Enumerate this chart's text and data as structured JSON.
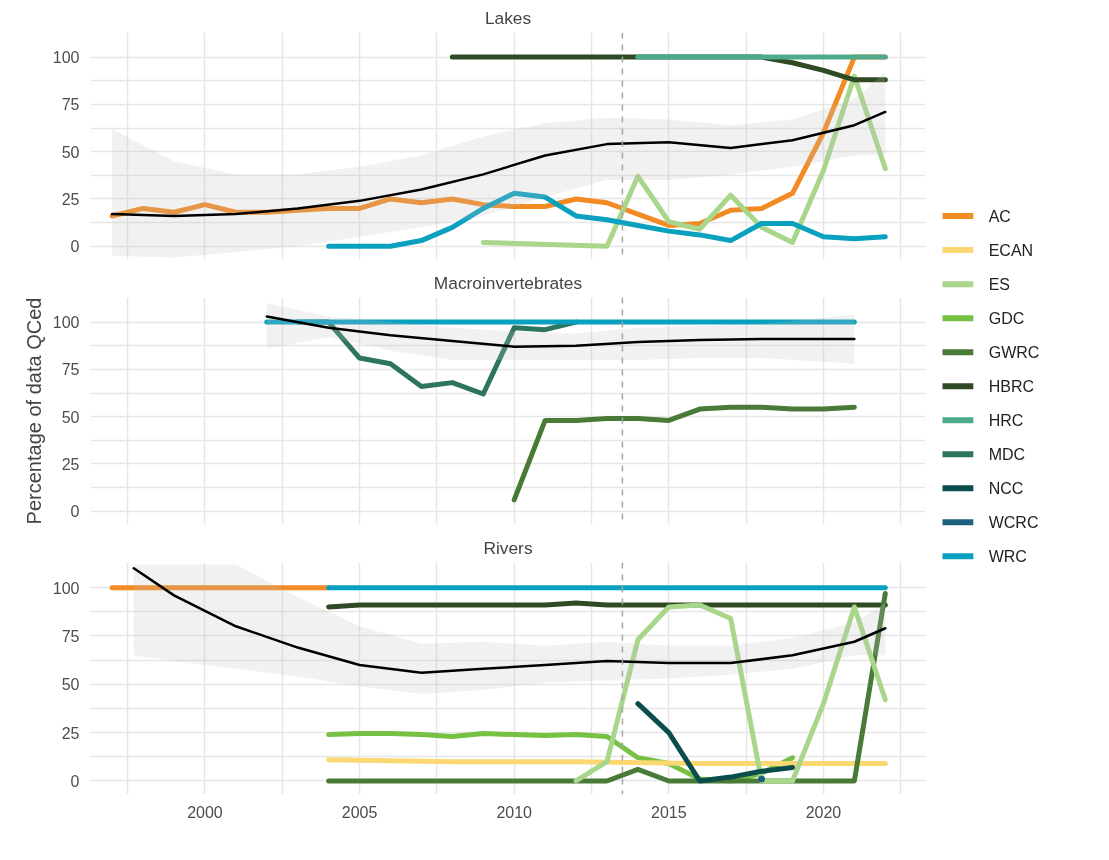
{
  "chart_data": [
    {
      "type": "line",
      "title": "Lakes",
      "xlim": [
        1996.3,
        2023.3
      ],
      "ylim": [
        -7,
        113
      ],
      "xticks": [
        {
          "value": 1997.5,
          "label": null
        },
        2000,
        {
          "value": 2002.5,
          "label": null
        },
        2005,
        {
          "value": 2007.5,
          "label": null
        },
        2010,
        {
          "value": 2012.5,
          "label": null
        },
        2015,
        {
          "value": 2017.5,
          "label": null
        },
        2020,
        {
          "value": 2022.5,
          "label": null
        }
      ],
      "yticks": [
        0,
        {
          "value": 12.5,
          "label": null
        },
        25,
        {
          "value": 37.5,
          "label": null
        },
        50,
        {
          "value": 62.5,
          "label": null
        },
        75,
        {
          "value": 87.5,
          "label": null
        },
        100
      ],
      "tick_labels": "y",
      "grid": true,
      "legend": "right",
      "ref_lines": [
        {
          "axis": "x",
          "value": 2013.5,
          "color": "#a6a6a6",
          "line_style": "dashed"
        }
      ],
      "series": [
        {
          "name": "AC",
          "color": "#f28b24",
          "x": [
            1997,
            1998,
            1999,
            2000,
            2001,
            2002,
            2003,
            2004,
            2005,
            2006,
            2007,
            2008,
            2009,
            2010,
            2011,
            2012,
            2013,
            2014,
            2015,
            2016,
            2017,
            2018,
            2019,
            2020,
            2021,
            2022
          ],
          "values": [
            16,
            20,
            18,
            22,
            18,
            18,
            19,
            20,
            20,
            25,
            23,
            25,
            22,
            21,
            21,
            25,
            23,
            17,
            11,
            12,
            19,
            20,
            28,
            60,
            100,
            100
          ]
        },
        {
          "name": "ES",
          "color": "#a8d68a",
          "x": [
            2009,
            2013,
            2014,
            2015,
            2016,
            2017,
            2018,
            2019,
            2020,
            2021,
            2022
          ],
          "values": [
            2,
            0,
            37,
            13,
            9,
            27,
            10,
            2,
            40,
            90,
            41
          ]
        },
        {
          "name": "HBRC",
          "color": "#2f4a25",
          "x": [
            2008,
            2009,
            2010,
            2011,
            2012,
            2013,
            2014,
            2015,
            2016,
            2017,
            2018,
            2019,
            2020,
            2021,
            2022
          ],
          "values": [
            100,
            100,
            100,
            100,
            100,
            100,
            100,
            100,
            100,
            100,
            100,
            97,
            93,
            88,
            88
          ]
        },
        {
          "name": "HRC",
          "color": "#4daa8c",
          "x": [
            2014,
            2015,
            2016,
            2017,
            2018,
            2019,
            2020,
            2021,
            2022
          ],
          "values": [
            100,
            100,
            100,
            100,
            100,
            100,
            100,
            100,
            100
          ]
        },
        {
          "name": "WRC",
          "color": "#0aa0c0",
          "x": [
            2004,
            2005,
            2006,
            2007,
            2008,
            2009,
            2010,
            2011,
            2012,
            2013,
            2014,
            2015,
            2016,
            2017,
            2018,
            2019,
            2020,
            2021,
            2022
          ],
          "values": [
            0,
            0,
            0,
            3,
            10,
            20,
            28,
            26,
            16,
            14,
            11,
            8,
            6,
            3,
            12,
            12,
            5,
            4,
            5
          ]
        },
        {
          "color": "#000000",
          "x": [
            1997,
            1999,
            2001,
            2003,
            2005,
            2007,
            2009,
            2011,
            2013,
            2015,
            2017,
            2019,
            2021,
            2022
          ],
          "values": [
            17,
            16,
            17,
            20,
            24,
            30,
            38,
            48,
            54,
            55,
            52,
            56,
            64,
            71
          ],
          "lower": [
            -5,
            -6,
            -3,
            0,
            5,
            10,
            16,
            26,
            35,
            35,
            38,
            42,
            48,
            48
          ],
          "upper": [
            62,
            45,
            38,
            38,
            42,
            48,
            58,
            65,
            68,
            67,
            64,
            67,
            78,
            92
          ]
        }
      ]
    },
    {
      "type": "line",
      "title": "Macroinvertebrates",
      "ylabel": "Percentage of data QCed",
      "xlim": [
        1996.3,
        2023.3
      ],
      "ylim": [
        -7,
        113
      ],
      "xticks": [
        {
          "value": 1997.5,
          "label": null
        },
        2000,
        {
          "value": 2002.5,
          "label": null
        },
        2005,
        {
          "value": 2007.5,
          "label": null
        },
        2010,
        {
          "value": 2012.5,
          "label": null
        },
        2015,
        {
          "value": 2017.5,
          "label": null
        },
        2020,
        {
          "value": 2022.5,
          "label": null
        }
      ],
      "yticks": [
        0,
        {
          "value": 12.5,
          "label": null
        },
        25,
        {
          "value": 37.5,
          "label": null
        },
        50,
        {
          "value": 62.5,
          "label": null
        },
        75,
        {
          "value": 87.5,
          "label": null
        },
        100
      ],
      "tick_labels": "y",
      "grid": true,
      "legend": "right",
      "ref_lines": [
        {
          "axis": "x",
          "value": 2013.5,
          "color": "#a6a6a6",
          "line_style": "dashed"
        }
      ],
      "series": [
        {
          "name": "MDC",
          "color": "#2e7560",
          "x": [
            2003,
            2004,
            2005,
            2006,
            2007,
            2008,
            2009,
            2010,
            2011,
            2012
          ],
          "values": [
            100,
            100,
            81,
            78,
            66,
            68,
            62,
            97,
            96,
            100
          ]
        },
        {
          "name": "GWRC",
          "color": "#4a7a38",
          "x": [
            2010,
            2011,
            2012,
            2013,
            2014,
            2015,
            2016,
            2017,
            2018,
            2019,
            2020,
            2021
          ],
          "values": [
            6,
            48,
            48,
            49,
            49,
            48,
            54,
            55,
            55,
            54,
            54,
            55
          ]
        },
        {
          "name": "WRC",
          "color": "#0aa0c0",
          "x": [
            2002,
            2004,
            2006,
            2008,
            2010,
            2012,
            2014,
            2016,
            2018,
            2020,
            2021
          ],
          "values": [
            100,
            100,
            100,
            100,
            100,
            100,
            100,
            100,
            100,
            100,
            100
          ]
        },
        {
          "color": "#000000",
          "x": [
            2002,
            2004,
            2006,
            2008,
            2010,
            2012,
            2014,
            2016,
            2018,
            2021
          ],
          "values": [
            103,
            97,
            93,
            90,
            87,
            87.5,
            89.5,
            90.5,
            91,
            91
          ],
          "lower": [
            86,
            92,
            85,
            80,
            80,
            80,
            80,
            81,
            81,
            78
          ],
          "upper": [
            110,
            103,
            100,
            97,
            95,
            94,
            97,
            98,
            99,
            104
          ]
        }
      ]
    },
    {
      "type": "line",
      "title": "Rivers",
      "xlim": [
        1996.3,
        2023.3
      ],
      "ylim": [
        -7,
        113
      ],
      "xticks": [
        {
          "value": 1997.5,
          "label": null
        },
        2000,
        {
          "value": 2002.5,
          "label": null
        },
        2005,
        {
          "value": 2007.5,
          "label": null
        },
        2010,
        {
          "value": 2012.5,
          "label": null
        },
        2015,
        {
          "value": 2017.5,
          "label": null
        },
        2020,
        {
          "value": 2022.5,
          "label": null
        }
      ],
      "yticks": [
        0,
        {
          "value": 12.5,
          "label": null
        },
        25,
        {
          "value": 37.5,
          "label": null
        },
        50,
        {
          "value": 62.5,
          "label": null
        },
        75,
        {
          "value": 87.5,
          "label": null
        },
        100
      ],
      "grid": true,
      "legend": "right",
      "ref_lines": [
        {
          "axis": "x",
          "value": 2013.5,
          "color": "#a6a6a6",
          "line_style": "dashed"
        }
      ],
      "series": [
        {
          "name": "AC",
          "color": "#f28b24",
          "x": [
            1997,
            1998,
            1999,
            2000,
            2001,
            2002,
            2003,
            2004
          ],
          "values": [
            100,
            100,
            100,
            100,
            100,
            100,
            100,
            100
          ]
        },
        {
          "name": "WRC",
          "color": "#0aa0c0",
          "x": [
            2004,
            2006,
            2008,
            2010,
            2012,
            2014,
            2016,
            2018,
            2020,
            2022
          ],
          "values": [
            100,
            100,
            100,
            100,
            100,
            100,
            100,
            100,
            100,
            100
          ]
        },
        {
          "name": "HBRC",
          "color": "#2f4a25",
          "x": [
            2004,
            2005,
            2008,
            2011,
            2012,
            2013,
            2016,
            2019,
            2022
          ],
          "values": [
            90,
            91,
            91,
            91,
            92,
            91,
            91,
            91,
            91
          ]
        },
        {
          "name": "GDC",
          "color": "#76c043",
          "x": [
            2004,
            2005,
            2006,
            2007,
            2008,
            2009,
            2010,
            2011,
            2012,
            2013,
            2014,
            2015,
            2016,
            2017,
            2018,
            2019
          ],
          "values": [
            24,
            24.5,
            24.5,
            24,
            23,
            24.5,
            24,
            23.5,
            24,
            23,
            12,
            9,
            1,
            0,
            4,
            12
          ]
        },
        {
          "name": "ECAN",
          "color": "#fbd872",
          "x": [
            2004,
            2008,
            2012,
            2016,
            2022
          ],
          "values": [
            11,
            10,
            10,
            9,
            9
          ]
        },
        {
          "name": "GWRC",
          "color": "#4a7a38",
          "x": [
            2004,
            2008,
            2013,
            2014,
            2015,
            2021,
            2022
          ],
          "values": [
            0,
            0,
            0,
            6,
            0,
            0,
            97
          ]
        },
        {
          "name": "ES",
          "color": "#a8d68a",
          "x": [
            2012,
            2013,
            2014,
            2015,
            2016,
            2017,
            2018,
            2019,
            2020,
            2021,
            2022
          ],
          "values": [
            0,
            10,
            73,
            90,
            91,
            84,
            0,
            0,
            40,
            90,
            42
          ]
        },
        {
          "name": "NCC",
          "color": "#0b4d4d",
          "x": [
            2014,
            2015,
            2016,
            2017,
            2018,
            2019
          ],
          "values": [
            40,
            25,
            0,
            2,
            5,
            7
          ]
        },
        {
          "name": "WCRC",
          "color": "#1f5f7f",
          "marker": "circle",
          "x": [
            2018
          ],
          "values": [
            1
          ]
        },
        {
          "color": "#000000",
          "x": [
            1997.7,
            1999,
            2001,
            2003,
            2005,
            2007,
            2009,
            2011,
            2013,
            2015,
            2017,
            2019,
            2021,
            2022
          ],
          "values": [
            110,
            96,
            80,
            69,
            60,
            56,
            58,
            60,
            62,
            61,
            61,
            65,
            72,
            79
          ],
          "lower": [
            65,
            62,
            58,
            54,
            49,
            45,
            47,
            51,
            52,
            53,
            55,
            58,
            65,
            65
          ],
          "upper": [
            112,
            112,
            112,
            95,
            80,
            71,
            72,
            70,
            72,
            70,
            70,
            74,
            82,
            92
          ]
        }
      ]
    }
  ]
}
